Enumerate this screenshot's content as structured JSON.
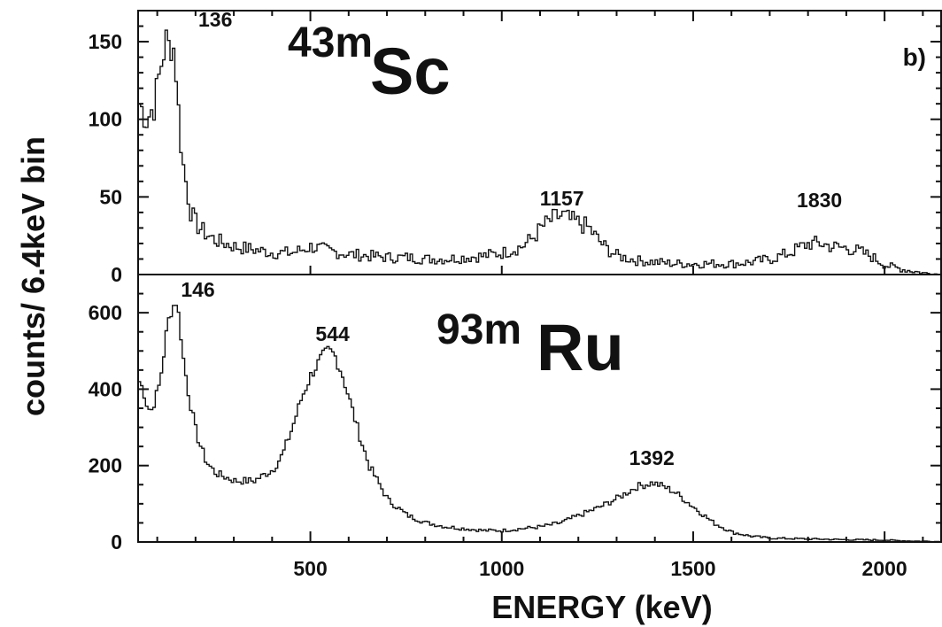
{
  "chart_data": [
    {
      "type": "line",
      "panel": "top",
      "panel_label": "b)",
      "isotope_mass": "43m",
      "isotope_element": "Sc",
      "ylim": [
        0,
        170
      ],
      "xlim": [
        50,
        2150
      ],
      "y_ticks": [
        0,
        50,
        100,
        150
      ],
      "y_tick_labels": [
        "0",
        "50",
        "100",
        "150"
      ],
      "peak_labels": [
        {
          "x": 136,
          "y": 153,
          "text": "136"
        },
        {
          "x": 1157,
          "y": 40,
          "text": "1157"
        },
        {
          "x": 1830,
          "y": 24,
          "text": "1830"
        }
      ],
      "series": [
        {
          "x": [
            50,
            60,
            70,
            80,
            90,
            100,
            110,
            120,
            130,
            136,
            145,
            155,
            165,
            175,
            185,
            200,
            225,
            250,
            275,
            300,
            325,
            350,
            375,
            400,
            450,
            500,
            550,
            600,
            650,
            700,
            750,
            800,
            850,
            900,
            950,
            1000,
            1050,
            1080,
            1100,
            1120,
            1140,
            1157,
            1175,
            1200,
            1225,
            1250,
            1275,
            1300,
            1350,
            1400,
            1450,
            1500,
            1550,
            1600,
            1650,
            1700,
            1750,
            1780,
            1800,
            1830,
            1860,
            1900,
            1930,
            1960,
            2000,
            2050,
            2100,
            2150
          ],
          "y": [
            110,
            105,
            100,
            105,
            110,
            125,
            140,
            150,
            145,
            153,
            135,
            95,
            70,
            55,
            40,
            32,
            26,
            22,
            20,
            18,
            17,
            16,
            15,
            14,
            14,
            18,
            15,
            13,
            12,
            11,
            11,
            10,
            10,
            11,
            12,
            14,
            18,
            24,
            30,
            34,
            37,
            38,
            35,
            33,
            30,
            22,
            16,
            12,
            9,
            8,
            7,
            7,
            7,
            7,
            8,
            10,
            14,
            18,
            20,
            20,
            18,
            17,
            15,
            12,
            6,
            3,
            1,
            0
          ]
        }
      ]
    },
    {
      "type": "line",
      "panel": "bottom",
      "isotope_mass": "93m",
      "isotope_element": "Ru",
      "xlabel": "ENERGY (keV)",
      "xlim": [
        50,
        2150
      ],
      "ylim": [
        0,
        700
      ],
      "x_ticks": [
        500,
        1000,
        1500,
        2000
      ],
      "x_tick_labels": [
        "500",
        "1000",
        "1500",
        "2000"
      ],
      "y_ticks": [
        0,
        200,
        400,
        600
      ],
      "y_tick_labels": [
        "0",
        "200",
        "400",
        "600"
      ],
      "peak_labels": [
        {
          "x": 146,
          "y": 630,
          "text": "146"
        },
        {
          "x": 544,
          "y": 500,
          "text": "544"
        },
        {
          "x": 1392,
          "y": 160,
          "text": "1392"
        }
      ],
      "series": [
        {
          "x": [
            50,
            60,
            70,
            80,
            90,
            100,
            110,
            120,
            130,
            140,
            146,
            155,
            165,
            180,
            200,
            225,
            250,
            300,
            350,
            400,
            425,
            450,
            475,
            500,
            525,
            544,
            560,
            580,
            600,
            625,
            650,
            700,
            750,
            800,
            850,
            900,
            950,
            1000,
            1050,
            1100,
            1150,
            1200,
            1250,
            1300,
            1350,
            1392,
            1420,
            1450,
            1500,
            1550,
            1600,
            1650,
            1700,
            1800,
            1900,
            2000,
            2050,
            2100,
            2150
          ],
          "y": [
            420,
            400,
            360,
            340,
            370,
            400,
            460,
            540,
            600,
            620,
            630,
            580,
            480,
            380,
            280,
            210,
            180,
            160,
            160,
            190,
            230,
            300,
            380,
            440,
            480,
            500,
            490,
            440,
            370,
            280,
            200,
            110,
            70,
            50,
            40,
            35,
            30,
            30,
            35,
            40,
            50,
            70,
            90,
            115,
            145,
            155,
            145,
            130,
            90,
            50,
            25,
            15,
            10,
            8,
            6,
            5,
            3,
            2,
            1
          ]
        }
      ]
    }
  ],
  "shared": {
    "ylabel": "counts/ 6.4keV bin"
  }
}
